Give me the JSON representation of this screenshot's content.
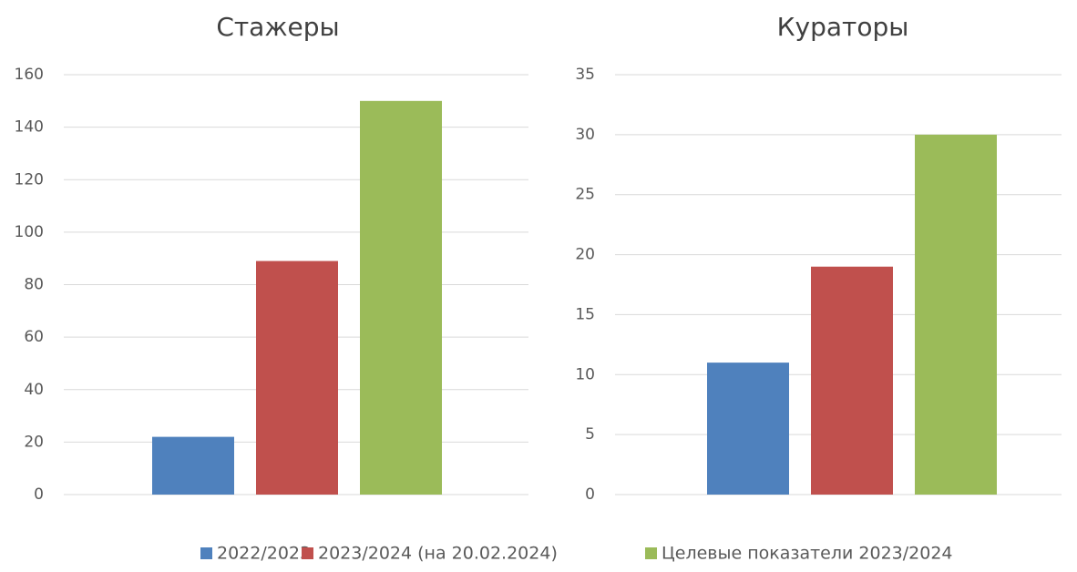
{
  "chart_data": [
    {
      "type": "bar",
      "title": "Стажеры",
      "categories": [
        null
      ],
      "series": [
        {
          "name": "2022/2023",
          "color": "#4f81bd",
          "values": [
            22
          ]
        },
        {
          "name": "2023/2024 (на 20.02.2024)",
          "color": "#c0504d",
          "values": [
            89
          ]
        },
        {
          "name": "Целевые показатели 2023/2024",
          "color": "#9bbb59",
          "values": [
            150
          ]
        }
      ],
      "ylim": [
        0,
        160
      ],
      "yticks": [
        0,
        20,
        40,
        60,
        80,
        100,
        120,
        140,
        160
      ],
      "grid": true,
      "legend": "bottom"
    },
    {
      "type": "bar",
      "title": "Кураторы",
      "categories": [
        null
      ],
      "series": [
        {
          "color": "#4f81bd",
          "values": [
            11
          ]
        },
        {
          "color": "#c0504d",
          "values": [
            19
          ]
        },
        {
          "color": "#9bbb59",
          "values": [
            30
          ]
        }
      ],
      "ylim": [
        0,
        35
      ],
      "yticks": [
        0,
        5,
        10,
        15,
        20,
        25,
        30,
        35
      ],
      "grid": true
    }
  ]
}
